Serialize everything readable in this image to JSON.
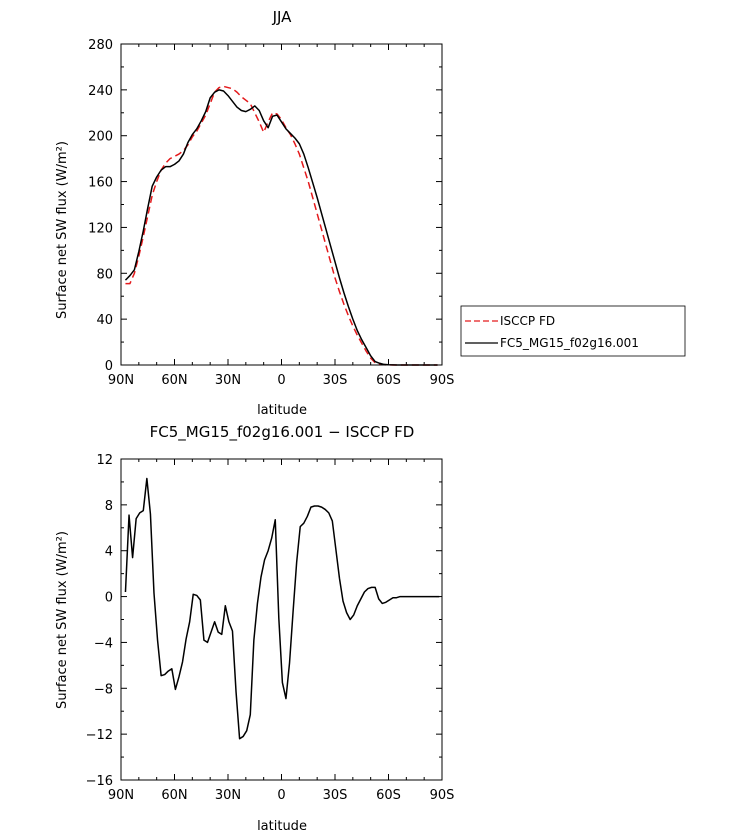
{
  "chart_data": [
    {
      "type": "line",
      "title": "JJA",
      "xlabel": "latitude",
      "ylabel": "Surface net SW flux (W/m²)",
      "xlim": [
        90,
        -90
      ],
      "ylim": [
        0,
        280
      ],
      "xticks": [
        {
          "value": 90,
          "label": "90N"
        },
        {
          "value": 60,
          "label": "60N"
        },
        {
          "value": 30,
          "label": "30N"
        },
        {
          "value": 0,
          "label": "0"
        },
        {
          "value": -30,
          "label": "30S"
        },
        {
          "value": -60,
          "label": "60S"
        },
        {
          "value": -90,
          "label": "90S"
        }
      ],
      "yticks": [
        0,
        40,
        80,
        120,
        160,
        200,
        240,
        280
      ],
      "legend_position": "right",
      "series": [
        {
          "name": "ISCCP FD",
          "color": "#e41a1c",
          "dash": "dashed",
          "x": [
            87.5,
            85,
            82.5,
            80,
            77.5,
            75,
            72.5,
            70,
            67.5,
            65,
            62.5,
            60,
            57.5,
            55,
            52.5,
            50,
            47.5,
            45,
            42.5,
            40,
            37.5,
            35,
            32.5,
            30,
            27.5,
            25,
            22.5,
            20,
            17.5,
            15,
            12.5,
            10,
            7.5,
            5,
            2.5,
            0,
            -2.5,
            -5,
            -7.5,
            -10,
            -12.5,
            -15,
            -17.5,
            -20,
            -22.5,
            -25,
            -27.5,
            -30,
            -32.5,
            -35,
            -37.5,
            -40,
            -42.5,
            -45,
            -47.5,
            -50,
            -52.5,
            -55,
            -57.5,
            -60,
            -62.5,
            -65,
            -67.5,
            -70,
            -72.5,
            -75,
            -77.5,
            -80,
            -82.5,
            -85,
            -87.5
          ],
          "y": [
            71,
            71,
            80,
            95,
            112,
            130,
            148,
            160,
            170,
            176,
            180,
            182,
            184,
            187,
            192,
            199,
            204,
            211,
            218,
            228,
            238,
            242,
            243,
            242,
            241,
            238,
            234,
            231,
            228,
            220,
            212,
            203,
            212,
            220,
            219,
            214,
            207,
            201,
            193,
            184,
            172,
            160,
            146,
            132,
            118,
            104,
            90,
            76,
            64,
            53,
            43,
            34,
            26,
            19,
            12,
            6,
            2,
            0.8,
            0.2,
            0.1,
            0,
            0,
            0,
            0,
            0,
            0,
            0,
            0,
            0,
            0,
            0
          ]
        },
        {
          "name": "FC5_MG15_f02g16.001",
          "color": "#000000",
          "dash": "solid",
          "x": [
            87.5,
            85,
            82.5,
            80,
            77.5,
            75,
            72.5,
            70,
            67.5,
            65,
            62.5,
            60,
            57.5,
            55,
            52.5,
            50,
            47.5,
            45,
            42.5,
            40,
            37.5,
            35,
            32.5,
            30,
            27.5,
            25,
            22.5,
            20,
            17.5,
            15,
            12.5,
            10,
            7.5,
            5,
            2.5,
            0,
            -2.5,
            -5,
            -7.5,
            -10,
            -12.5,
            -15,
            -17.5,
            -20,
            -22.5,
            -25,
            -27.5,
            -30,
            -32.5,
            -35,
            -37.5,
            -40,
            -42.5,
            -45,
            -47.5,
            -50,
            -52.5,
            -55,
            -57.5,
            -60,
            -62.5,
            -65,
            -67.5,
            -70,
            -72.5,
            -75,
            -77.5,
            -80,
            -82.5,
            -85,
            -87.5
          ],
          "y": [
            74,
            78,
            83,
            99,
            117,
            137,
            156,
            164,
            170,
            173,
            173,
            175,
            178,
            184,
            194,
            201,
            206,
            213,
            221,
            233,
            238,
            240,
            239,
            235,
            230,
            225,
            222,
            221,
            223,
            226,
            222,
            213,
            207,
            217,
            218,
            212,
            206,
            202,
            198,
            193,
            184,
            172,
            159,
            146,
            132,
            118,
            104,
            90,
            76,
            63,
            51,
            40,
            30,
            22,
            15,
            8,
            3,
            1.5,
            0.5,
            0.2,
            0.1,
            0,
            0,
            0,
            0,
            0,
            0,
            0,
            0,
            0,
            0
          ]
        }
      ]
    },
    {
      "type": "line",
      "title": "FC5_MG15_f02g16.001 − ISCCP FD",
      "xlabel": "latitude",
      "ylabel": "Surface net SW flux (W/m²)",
      "xlim": [
        90,
        -90
      ],
      "ylim": [
        -16,
        12
      ],
      "xticks": [
        {
          "value": 90,
          "label": "90N"
        },
        {
          "value": 60,
          "label": "60N"
        },
        {
          "value": 30,
          "label": "30N"
        },
        {
          "value": 0,
          "label": "0"
        },
        {
          "value": -30,
          "label": "30S"
        },
        {
          "value": -60,
          "label": "60S"
        },
        {
          "value": -90,
          "label": "90S"
        }
      ],
      "yticks": [
        -16,
        -12,
        -8,
        -4,
        0,
        4,
        8,
        12
      ],
      "series": [
        {
          "color": "#000000",
          "dash": "solid",
          "x": [
            87.5,
            85.5,
            83.5,
            81.5,
            79.5,
            77.5,
            75.5,
            73.5,
            71.5,
            69.5,
            67.5,
            65.5,
            63.5,
            61.5,
            59.5,
            57.5,
            55.5,
            53.5,
            51.5,
            49.5,
            47.5,
            45.5,
            43.5,
            41.5,
            39.5,
            37.5,
            35.5,
            33.5,
            31.5,
            29.5,
            27.5,
            25.5,
            23.5,
            21.5,
            19.5,
            17.5,
            15.5,
            13.5,
            11.5,
            9.5,
            7.5,
            5.5,
            3.5,
            1.5,
            -0.5,
            -2.5,
            -4.5,
            -6.5,
            -8.5,
            -10.5,
            -12.5,
            -14.5,
            -16.5,
            -18.5,
            -20.5,
            -22.5,
            -24.5,
            -26.5,
            -28.5,
            -30.5,
            -32.5,
            -34.5,
            -36.5,
            -38.5,
            -40.5,
            -42.5,
            -44.5,
            -46.5,
            -48.5,
            -50.5,
            -52.5,
            -54.5,
            -56.5,
            -58.5,
            -60.5,
            -62.5,
            -64.5,
            -66.5,
            -68.5,
            -70.5,
            -72.5,
            -74.5,
            -76.5,
            -78.5,
            -80.5,
            -82.5,
            -84.5,
            -86.5,
            -88.5
          ],
          "y": [
            0.4,
            7.1,
            3.4,
            6.8,
            7.3,
            7.5,
            10.3,
            7.2,
            0.3,
            -3.8,
            -6.9,
            -6.8,
            -6.5,
            -6.3,
            -8.1,
            -7.0,
            -5.7,
            -3.7,
            -2.2,
            0.2,
            0.1,
            -0.3,
            -3.8,
            -4.0,
            -3.1,
            -2.2,
            -3.1,
            -3.3,
            -0.8,
            -2.2,
            -3.0,
            -8.3,
            -12.4,
            -12.2,
            -11.7,
            -10.3,
            -3.8,
            -0.6,
            1.7,
            3.2,
            4.0,
            5.1,
            6.7,
            -1.9,
            -7.5,
            -8.9,
            -5.8,
            -1.3,
            3.0,
            6.1,
            6.4,
            7.0,
            7.8,
            7.9,
            7.9,
            7.8,
            7.6,
            7.3,
            6.6,
            4.1,
            1.6,
            -0.4,
            -1.4,
            -2.0,
            -1.6,
            -0.8,
            -0.2,
            0.4,
            0.7,
            0.8,
            0.8,
            -0.2,
            -0.6,
            -0.5,
            -0.3,
            -0.1,
            -0.1,
            0.0,
            0.0,
            0.0,
            0.0,
            0.0,
            0.0,
            0.0,
            0.0,
            0.0,
            0.0,
            0.0,
            0.0
          ]
        }
      ]
    }
  ]
}
